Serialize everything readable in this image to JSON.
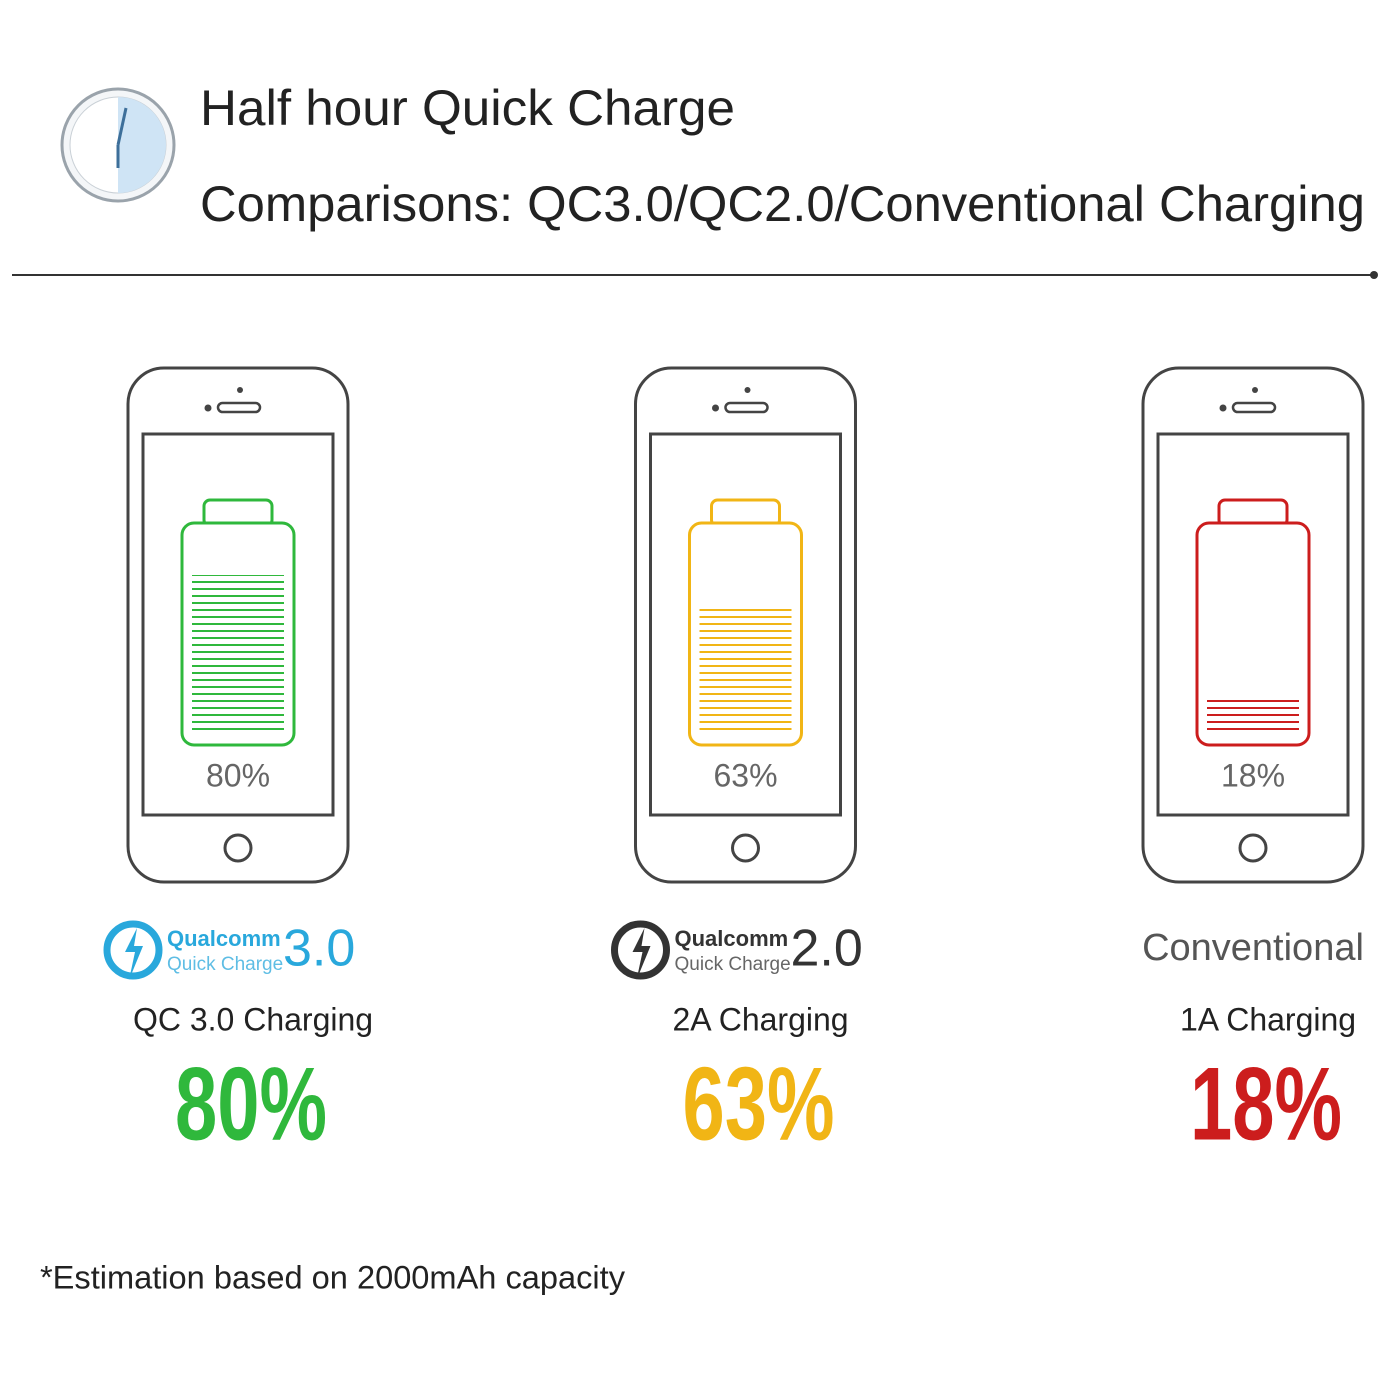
{
  "header": {
    "title": "Half hour Quick Charge",
    "subtitle": "Comparisons: QC3.0/QC2.0/Conventional Charging"
  },
  "items": [
    {
      "logo_brand": "Qualcomm",
      "logo_product": "Quick Charge",
      "logo_version": "3.0",
      "logo_color": "#29a8dc",
      "label": "QC 3.0  Charging",
      "percent": 80,
      "percent_label": "80%",
      "color": "#2fb83c"
    },
    {
      "logo_brand": "Qualcomm",
      "logo_product": "Quick Charge",
      "logo_version": "2.0",
      "logo_color": "#333333",
      "label": "2A Charging",
      "percent": 63,
      "percent_label": "63%",
      "color": "#f1b515"
    },
    {
      "logo_text": "Conventional",
      "label": "1A Charging",
      "percent": 18,
      "percent_label": "18%",
      "color": "#cc1d1d"
    }
  ],
  "footnote": "*Estimation based on 2000mAh capacity"
}
